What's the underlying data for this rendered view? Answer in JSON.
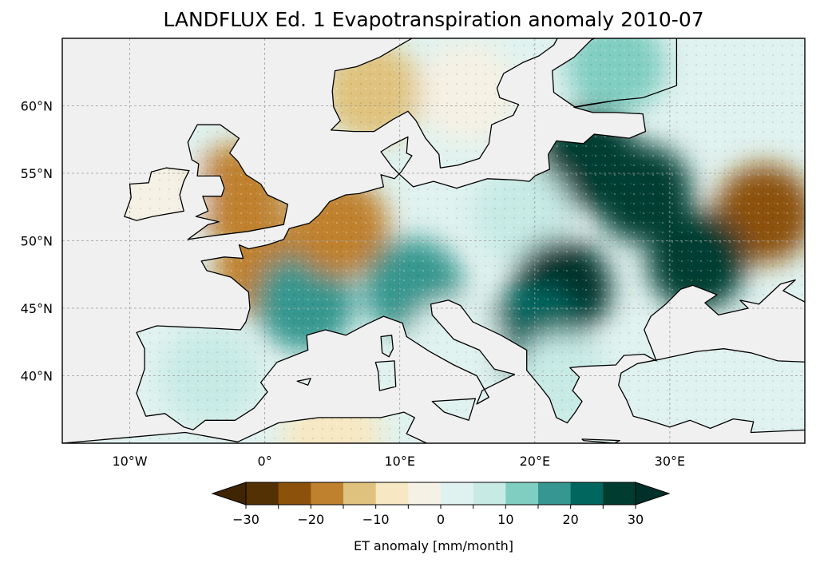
{
  "title": "LANDFLUX Ed. 1 Evapotranspiration anomaly 2010-07",
  "map": {
    "extent": {
      "lon": [
        -15,
        40
      ],
      "lat": [
        35,
        65
      ]
    },
    "gridlines": true,
    "lon_ticks": [
      {
        "value": -10,
        "label": "10°W"
      },
      {
        "value": 0,
        "label": "0°"
      },
      {
        "value": 10,
        "label": "10°E"
      },
      {
        "value": 20,
        "label": "20°E"
      },
      {
        "value": 30,
        "label": "30°E"
      }
    ],
    "lat_ticks": [
      {
        "value": 60,
        "label": "60°N"
      },
      {
        "value": 55,
        "label": "55°N"
      },
      {
        "value": 50,
        "label": "50°N"
      },
      {
        "value": 45,
        "label": "45°N"
      },
      {
        "value": 40,
        "label": "40°N"
      }
    ],
    "ocean_color": "#f0f0f0",
    "coast_color": "#000000",
    "anomaly_regions": [
      {
        "name": "Britain",
        "lon": -2,
        "lat": 53.5,
        "value": -18
      },
      {
        "name": "Ireland",
        "lon": -8,
        "lat": 53.2,
        "value": -4
      },
      {
        "name": "Western France",
        "lon": 0,
        "lat": 48,
        "value": -20
      },
      {
        "name": "Southern France",
        "lon": 3,
        "lat": 45.5,
        "value": 16
      },
      {
        "name": "Benelux",
        "lon": 5.5,
        "lat": 51,
        "value": -18
      },
      {
        "name": "Iberia",
        "lon": -4,
        "lat": 40,
        "value": 8
      },
      {
        "name": "Norway",
        "lon": 8,
        "lat": 61,
        "value": -12
      },
      {
        "name": "Sweden",
        "lon": 15,
        "lat": 61,
        "value": -4
      },
      {
        "name": "Finland",
        "lon": 26,
        "lat": 63,
        "value": 14
      },
      {
        "name": "Baltics",
        "lon": 24,
        "lat": 56,
        "value": 28
      },
      {
        "name": "Poland",
        "lon": 19,
        "lat": 52,
        "value": 8
      },
      {
        "name": "Belarus",
        "lon": 28,
        "lat": 53.5,
        "value": 28
      },
      {
        "name": "Central Russia",
        "lon": 37,
        "lat": 52,
        "value": -22
      },
      {
        "name": "Ukraine",
        "lon": 32,
        "lat": 48.5,
        "value": 28
      },
      {
        "name": "Hungary/Romania",
        "lon": 22,
        "lat": 46.5,
        "value": 30
      },
      {
        "name": "Balkans",
        "lon": 20,
        "lat": 43,
        "value": 24
      },
      {
        "name": "Alps",
        "lon": 11,
        "lat": 46.5,
        "value": 16
      },
      {
        "name": "Italy",
        "lon": 14,
        "lat": 42,
        "value": 4
      },
      {
        "name": "Greece",
        "lon": 22,
        "lat": 39.5,
        "value": 6
      },
      {
        "name": "Turkey",
        "lon": 33,
        "lat": 39,
        "value": 0
      },
      {
        "name": "North Africa",
        "lon": 5,
        "lat": 35.5,
        "value": -6
      }
    ]
  },
  "colorbar": {
    "boundaries": [
      -30,
      -25,
      -20,
      -15,
      -10,
      -5,
      0,
      5,
      10,
      15,
      20,
      25,
      30
    ],
    "colors": [
      "#543005",
      "#8c510a",
      "#bf812d",
      "#dfc27d",
      "#f6e8c3",
      "#f5f1e4",
      "#e0f2ef",
      "#c7eae5",
      "#80cdc1",
      "#35978f",
      "#01665e",
      "#003c30"
    ],
    "extend_min_color": "#3f2504",
    "extend_max_color": "#00302a",
    "tick_labels": [
      {
        "value": -30,
        "label": "−30"
      },
      {
        "value": -20,
        "label": "−20"
      },
      {
        "value": -10,
        "label": "−10"
      },
      {
        "value": 0,
        "label": "0"
      },
      {
        "value": 10,
        "label": "10"
      },
      {
        "value": 20,
        "label": "20"
      },
      {
        "value": 30,
        "label": "30"
      }
    ],
    "label": "ET anomaly [mm/month]"
  }
}
